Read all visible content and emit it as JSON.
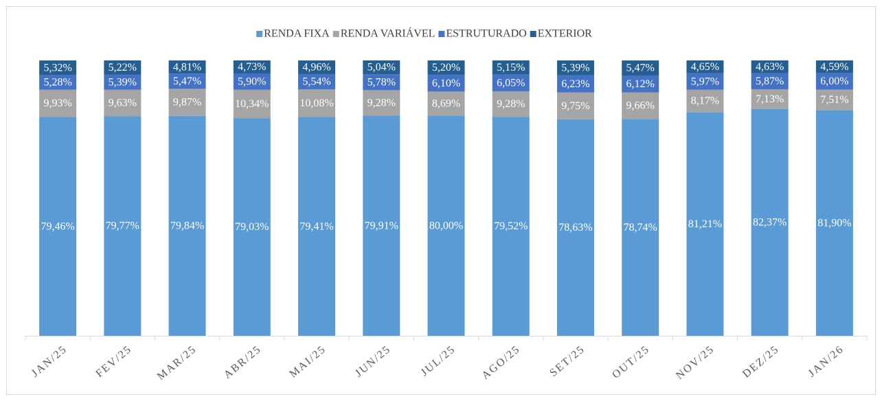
{
  "chart_data": {
    "type": "bar",
    "stacked": true,
    "categories": [
      "JAN/25",
      "FEV/25",
      "MAR/25",
      "ABR/25",
      "MAI/25",
      "JUN/25",
      "JUL/25",
      "AGO/25",
      "SET/25",
      "OUT/25",
      "NOV/25",
      "DEZ/25",
      "JAN/26"
    ],
    "ylim": [
      0,
      100
    ],
    "series": [
      {
        "name": "RENDA FIXA",
        "color": "#5b9bd5",
        "values": [
          79.46,
          79.77,
          79.84,
          79.03,
          79.41,
          79.91,
          80.0,
          79.52,
          78.63,
          78.74,
          81.21,
          82.37,
          81.9
        ],
        "value_labels": [
          "79,46%",
          "79,77%",
          "79,84%",
          "79,03%",
          "79,41%",
          "79,91%",
          "80,00%",
          "79,52%",
          "78,63%",
          "78,74%",
          "81,21%",
          "82,37%",
          "81,90%"
        ]
      },
      {
        "name": "RENDA VARIÁVEL",
        "color": "#a5a5a5",
        "values": [
          9.93,
          9.63,
          9.87,
          10.34,
          10.08,
          9.28,
          8.69,
          9.28,
          9.75,
          9.66,
          8.17,
          7.13,
          7.51
        ],
        "value_labels": [
          "9,93%",
          "9,63%",
          "9,87%",
          "10,34%",
          "10,08%",
          "9,28%",
          "8,69%",
          "9,28%",
          "9,75%",
          "9,66%",
          "8,17%",
          "7,13%",
          "7,51%"
        ]
      },
      {
        "name": "ESTRUTURADO",
        "color": "#4472c4",
        "values": [
          5.28,
          5.39,
          5.47,
          5.9,
          5.54,
          5.78,
          6.1,
          6.05,
          6.23,
          6.12,
          5.97,
          5.87,
          6.0
        ],
        "value_labels": [
          "5,28%",
          "5,39%",
          "5,47%",
          "5,90%",
          "5,54%",
          "5,78%",
          "6,10%",
          "6,05%",
          "6,23%",
          "6,12%",
          "5,97%",
          "5,87%",
          "6,00%"
        ]
      },
      {
        "name": "EXTERIOR",
        "color": "#255e91",
        "values": [
          5.32,
          5.22,
          4.81,
          4.73,
          4.96,
          5.04,
          5.2,
          5.15,
          5.39,
          5.47,
          4.65,
          4.63,
          4.59
        ],
        "value_labels": [
          "5,32%",
          "5,22%",
          "4,81%",
          "4,73%",
          "4,96%",
          "5,04%",
          "5,20%",
          "5,15%",
          "5,39%",
          "5,47%",
          "4,65%",
          "4,63%",
          "4,59%"
        ]
      }
    ]
  }
}
